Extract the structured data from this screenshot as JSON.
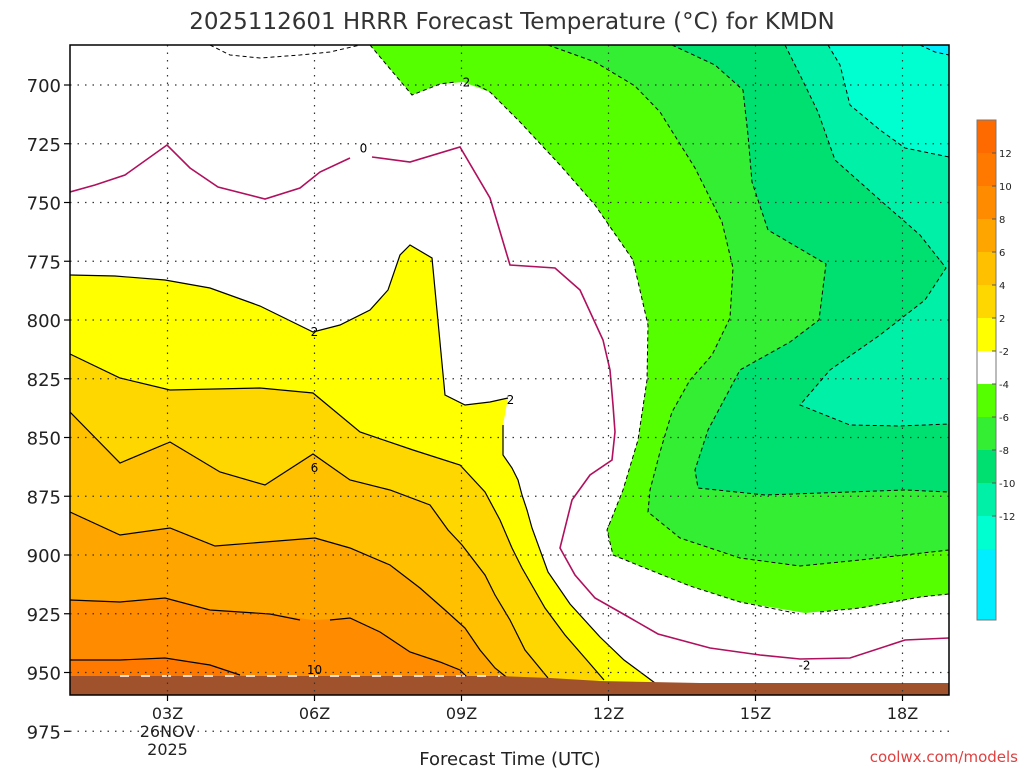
{
  "chart_data": {
    "type": "contour",
    "title": "2025112601 HRRR Forecast Temperature (°C) for KMDN",
    "xlabel": "Forecast Time (UTC)",
    "ylabel": "",
    "watermark": "coolwx.com/models",
    "x_range_hours": [
      1,
      19
    ],
    "y_range_hpa": [
      680,
      985
    ],
    "y_ticks": [
      700,
      725,
      750,
      775,
      800,
      825,
      850,
      875,
      900,
      925,
      950,
      975
    ],
    "x_ticks": [
      {
        "hour": 3,
        "label": "03Z",
        "date": "26NOV",
        "year": "2025"
      },
      {
        "hour": 6,
        "label": "06Z"
      },
      {
        "hour": 9,
        "label": "09Z"
      },
      {
        "hour": 12,
        "label": "12Z"
      },
      {
        "hour": 15,
        "label": "15Z"
      },
      {
        "hour": 18,
        "label": "18Z"
      }
    ],
    "grid": true,
    "colorbar": {
      "placement": "right",
      "levels": [
        {
          "label": "12",
          "color": "#ff7800"
        },
        {
          "label": "10",
          "color": "#ff8c00"
        },
        {
          "label": "8",
          "color": "#ffa500"
        },
        {
          "label": "6",
          "color": "#ffc000"
        },
        {
          "label": "4",
          "color": "#ffd700"
        },
        {
          "label": "2",
          "color": "#ffff00"
        },
        {
          "label": "-2",
          "color": "#ffffff"
        },
        {
          "label": "-4",
          "color": "#55ff00"
        },
        {
          "label": "-6",
          "color": "#33ee33"
        },
        {
          "label": "-8",
          "color": "#00e070"
        },
        {
          "label": "-10",
          "color": "#00f0a8"
        },
        {
          "label": "-12",
          "color": "#00ffd0"
        }
      ],
      "bottom_color": "#00eeff",
      "top_color": "#ff6a00"
    },
    "contour_labels": [
      {
        "text": "2",
        "hour": 9.1,
        "p": 699
      },
      {
        "text": "0",
        "hour": 7.0,
        "p": 727
      },
      {
        "text": "2",
        "hour": 6.0,
        "p": 805
      },
      {
        "text": "2",
        "hour": 10.0,
        "p": 834
      },
      {
        "text": "6",
        "hour": 6.0,
        "p": 863
      },
      {
        "text": "10",
        "hour": 6.0,
        "p": 949
      },
      {
        "text": "-2",
        "hour": 16.0,
        "p": 947
      }
    ],
    "colors": {
      "ground": "#a0522d",
      "zero_line": "#b0105e",
      "grid": "#333333"
    }
  }
}
